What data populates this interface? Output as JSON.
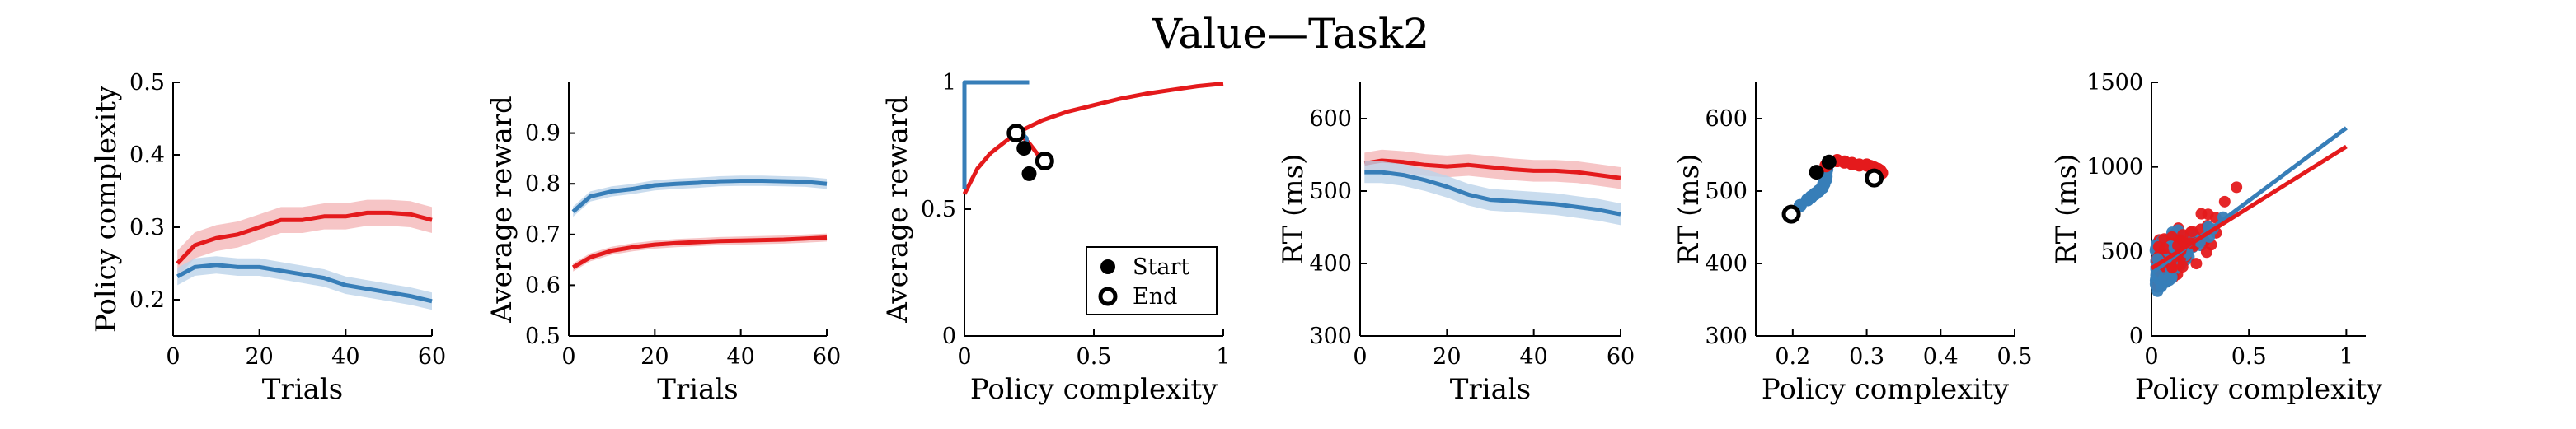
{
  "figure_title": "Value—Task2",
  "colors": {
    "red": "#e41a1c",
    "blue": "#377eb8",
    "red_band": "#f4b6b8",
    "blue_band": "#bcd3ea"
  },
  "chart_data": [
    {
      "type": "line",
      "xlabel": "Trials",
      "ylabel": "Policy complexity",
      "xlim": [
        0,
        60
      ],
      "ylim": [
        0.15,
        0.5
      ],
      "xticks": [
        "0",
        "20",
        "40",
        "60"
      ],
      "yticks": [
        "0.2",
        "0.3",
        "0.4",
        "0.5"
      ],
      "x": [
        1,
        5,
        10,
        15,
        20,
        25,
        30,
        35,
        40,
        45,
        50,
        55,
        60
      ],
      "series": [
        {
          "color": "red",
          "values": [
            0.25,
            0.275,
            0.285,
            0.29,
            0.3,
            0.31,
            0.31,
            0.315,
            0.315,
            0.32,
            0.32,
            0.318,
            0.31
          ],
          "band": 0.018
        },
        {
          "color": "blue",
          "values": [
            0.232,
            0.245,
            0.248,
            0.245,
            0.245,
            0.24,
            0.235,
            0.23,
            0.22,
            0.215,
            0.21,
            0.205,
            0.198
          ],
          "band": 0.012
        }
      ]
    },
    {
      "type": "line",
      "xlabel": "Trials",
      "ylabel": "Average reward",
      "xlim": [
        0,
        60
      ],
      "ylim": [
        0.5,
        1.0
      ],
      "xticks": [
        "0",
        "20",
        "40",
        "60"
      ],
      "yticks": [
        "0.5",
        "0.6",
        "0.7",
        "0.8",
        "0.9"
      ],
      "x": [
        1,
        5,
        10,
        15,
        20,
        25,
        30,
        35,
        40,
        45,
        50,
        55,
        60
      ],
      "series": [
        {
          "color": "blue",
          "values": [
            0.745,
            0.775,
            0.785,
            0.79,
            0.797,
            0.8,
            0.802,
            0.805,
            0.806,
            0.806,
            0.805,
            0.804,
            0.8
          ],
          "band": 0.01
        },
        {
          "color": "red",
          "values": [
            0.635,
            0.655,
            0.668,
            0.675,
            0.68,
            0.683,
            0.685,
            0.687,
            0.688,
            0.689,
            0.69,
            0.692,
            0.694
          ],
          "band": 0.008
        }
      ]
    },
    {
      "type": "line",
      "xlabel": "Policy complexity",
      "ylabel": "Average reward",
      "xlim": [
        0,
        1
      ],
      "ylim": [
        0,
        1
      ],
      "xticks": [
        "0",
        "0.5",
        "1"
      ],
      "yticks": [
        "0",
        "0.5",
        "1"
      ],
      "series": [
        {
          "color": "red",
          "x": [
            0.0,
            0.05,
            0.1,
            0.2,
            0.3,
            0.4,
            0.5,
            0.6,
            0.7,
            0.8,
            0.9,
            1.0
          ],
          "values": [
            0.56,
            0.66,
            0.72,
            0.8,
            0.85,
            0.885,
            0.91,
            0.935,
            0.955,
            0.97,
            0.985,
            0.995
          ]
        },
        {
          "color": "blue",
          "x": [
            0.0,
            0.0,
            0.25
          ],
          "values": [
            0.58,
            1.0,
            1.0
          ]
        },
        {
          "color": "red",
          "x": [
            0.22,
            0.25,
            0.28,
            0.3,
            0.31
          ],
          "values": [
            0.79,
            0.76,
            0.72,
            0.69,
            0.68
          ]
        },
        {
          "color": "blue",
          "x": [
            0.23,
            0.24,
            0.24,
            0.22,
            0.2
          ],
          "values": [
            0.73,
            0.76,
            0.78,
            0.8,
            0.8
          ]
        }
      ],
      "markers": [
        {
          "kind": "start",
          "x": 0.23,
          "y": 0.74
        },
        {
          "kind": "start",
          "x": 0.25,
          "y": 0.64
        },
        {
          "kind": "end",
          "x": 0.2,
          "y": 0.8
        },
        {
          "kind": "end",
          "x": 0.31,
          "y": 0.69
        }
      ],
      "legend": {
        "position": "bottom-right",
        "entries": [
          {
            "marker": "start",
            "label": "Start"
          },
          {
            "marker": "end",
            "label": "End"
          }
        ]
      }
    },
    {
      "type": "line",
      "xlabel": "Trials",
      "ylabel": "RT (ms)",
      "xlim": [
        0,
        60
      ],
      "ylim": [
        300,
        650
      ],
      "xticks": [
        "0",
        "20",
        "40",
        "60"
      ],
      "yticks": [
        "300",
        "400",
        "500",
        "600"
      ],
      "x": [
        1,
        5,
        10,
        15,
        20,
        25,
        30,
        35,
        40,
        45,
        50,
        55,
        60
      ],
      "series": [
        {
          "color": "red",
          "values": [
            538,
            542,
            540,
            536,
            534,
            536,
            533,
            530,
            528,
            528,
            526,
            522,
            518
          ],
          "band": 15
        },
        {
          "color": "blue",
          "values": [
            526,
            526,
            522,
            515,
            506,
            495,
            488,
            486,
            484,
            482,
            478,
            474,
            468
          ],
          "band": 15
        }
      ]
    },
    {
      "type": "scatter",
      "xlabel": "Policy complexity",
      "ylabel": "RT (ms)",
      "xlim": [
        0.15,
        0.5
      ],
      "ylim": [
        300,
        650
      ],
      "xticks": [
        "0.2",
        "0.3",
        "0.4",
        "0.5"
      ],
      "yticks": [
        "300",
        "400",
        "500",
        "600"
      ],
      "series": [
        {
          "color": "blue",
          "x": [
            0.2,
            0.21,
            0.22,
            0.225,
            0.23,
            0.235,
            0.24,
            0.242,
            0.244,
            0.245,
            0.245,
            0.246
          ],
          "values": [
            470,
            480,
            488,
            492,
            496,
            500,
            505,
            510,
            515,
            520,
            525,
            530
          ]
        },
        {
          "color": "red",
          "x": [
            0.245,
            0.25,
            0.26,
            0.27,
            0.28,
            0.29,
            0.3,
            0.305,
            0.31,
            0.315,
            0.318,
            0.32,
            0.315
          ],
          "values": [
            535,
            540,
            542,
            540,
            538,
            536,
            536,
            534,
            532,
            530,
            528,
            525,
            520
          ]
        }
      ],
      "markers": [
        {
          "kind": "start",
          "x": 0.232,
          "y": 526
        },
        {
          "kind": "start",
          "x": 0.249,
          "y": 540
        },
        {
          "kind": "end",
          "x": 0.198,
          "y": 468
        },
        {
          "kind": "end",
          "x": 0.31,
          "y": 518
        }
      ]
    },
    {
      "type": "scatter",
      "xlabel": "Policy complexity",
      "ylabel": "RT (ms)",
      "xlim": [
        0,
        1.1
      ],
      "ylim": [
        0,
        1500
      ],
      "xticks": [
        "0",
        "0.5",
        "1"
      ],
      "yticks": [
        "0",
        "500",
        "1000",
        "1500"
      ],
      "fits": [
        {
          "color": "blue",
          "x": [
            0,
            1
          ],
          "values": [
            370,
            1230
          ]
        },
        {
          "color": "red",
          "x": [
            0,
            1
          ],
          "values": [
            400,
            1120
          ]
        }
      ],
      "points_note": "approximate scatter of individual participants",
      "point_count": 380
    }
  ]
}
